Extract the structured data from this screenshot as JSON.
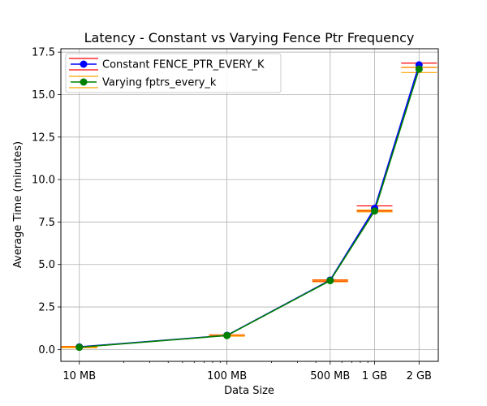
{
  "chart_data": {
    "type": "line",
    "title": "Latency - Constant vs Varying Fence Ptr Frequency",
    "xlabel": "Data Size",
    "ylabel": "Average Time (minutes)",
    "x_scale": "log",
    "x_values_mb": [
      10,
      100,
      500,
      1000,
      2000
    ],
    "x_tick_labels": [
      "10 MB",
      "100 MB",
      "500 MB",
      "1 GB",
      "2 GB"
    ],
    "ylim": [
      -0.7,
      17.7
    ],
    "y_ticks": [
      0.0,
      2.5,
      5.0,
      7.5,
      10.0,
      12.5,
      15.0,
      17.5
    ],
    "y_tick_labels": [
      "0.0",
      "2.5",
      "5.0",
      "7.5",
      "10.0",
      "12.5",
      "15.0",
      "17.5"
    ],
    "grid": true,
    "legend_position": "top-left",
    "series": [
      {
        "name": "Constant FENCE_PTR_EVERY_K",
        "color": "#0000ff",
        "errorbar_color": "#ff0000",
        "values": [
          0.15,
          0.83,
          4.08,
          8.3,
          16.75
        ],
        "err_low": [
          0.12,
          0.8,
          4.02,
          8.15,
          16.6
        ],
        "err_high": [
          0.18,
          0.86,
          4.1,
          8.45,
          16.85
        ]
      },
      {
        "name": "Varying fptrs_every_k",
        "color": "#008000",
        "errorbar_color": "#ffa500",
        "values": [
          0.13,
          0.82,
          4.05,
          8.15,
          16.5
        ],
        "err_low": [
          0.1,
          0.78,
          3.98,
          8.1,
          16.3
        ],
        "err_high": [
          0.16,
          0.85,
          4.08,
          8.2,
          16.6
        ]
      }
    ]
  }
}
